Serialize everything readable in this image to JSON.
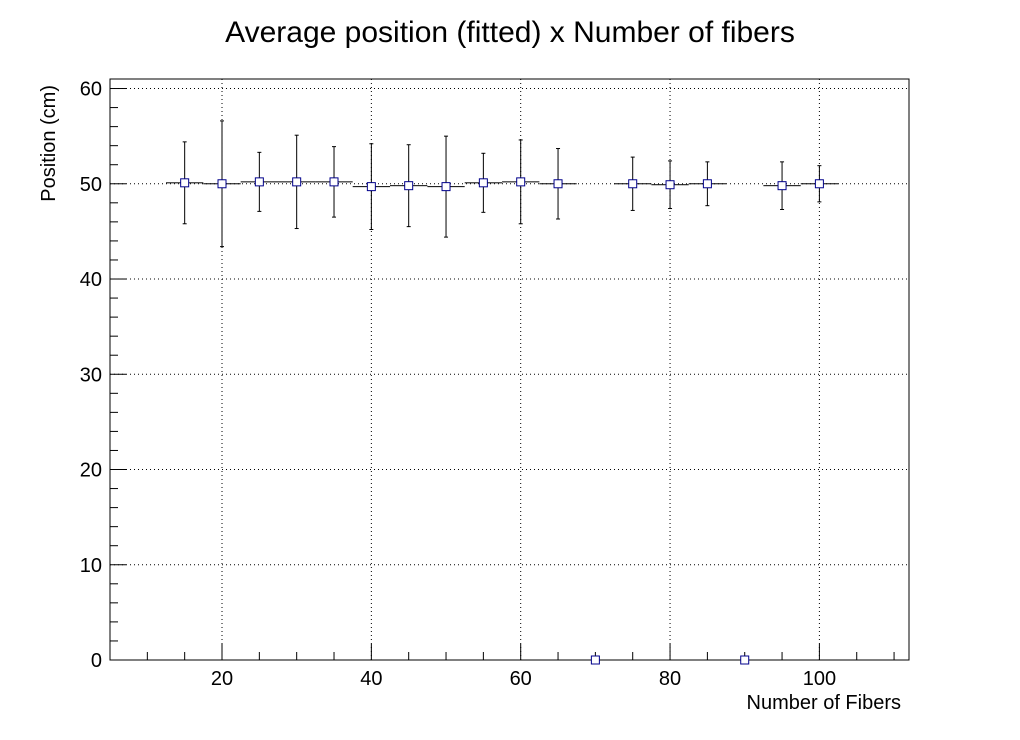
{
  "chart_data": {
    "type": "scatter",
    "title": "Average position (fitted) x Number of fibers",
    "xlabel": "Number of Fibers",
    "ylabel": "Position (cm)",
    "xlim": [
      5,
      112
    ],
    "ylim": [
      0,
      61
    ],
    "grid": true,
    "x_ticks": [
      20,
      40,
      60,
      80,
      100
    ],
    "y_ticks": [
      0,
      10,
      20,
      30,
      40,
      50,
      60
    ],
    "series": [
      {
        "marker": "open-square",
        "marker_color": "#00008b",
        "points": [
          {
            "x": 15,
            "y": 50.1,
            "xerr": 2.5,
            "yerr": 4.3
          },
          {
            "x": 20,
            "y": 50.0,
            "xerr": 2.5,
            "yerr": 6.6
          },
          {
            "x": 25,
            "y": 50.2,
            "xerr": 2.5,
            "yerr": 3.1
          },
          {
            "x": 30,
            "y": 50.2,
            "xerr": 2.5,
            "yerr": 4.9
          },
          {
            "x": 35,
            "y": 50.2,
            "xerr": 2.5,
            "yerr": 3.7
          },
          {
            "x": 40,
            "y": 49.7,
            "xerr": 2.5,
            "yerr": 4.5
          },
          {
            "x": 45,
            "y": 49.8,
            "xerr": 2.5,
            "yerr": 4.3
          },
          {
            "x": 50,
            "y": 49.7,
            "xerr": 2.5,
            "yerr": 5.3
          },
          {
            "x": 55,
            "y": 50.1,
            "xerr": 2.5,
            "yerr": 3.1
          },
          {
            "x": 60,
            "y": 50.2,
            "xerr": 2.5,
            "yerr": 4.4
          },
          {
            "x": 65,
            "y": 50.0,
            "xerr": 2.5,
            "yerr": 3.7
          },
          {
            "x": 70,
            "y": 0.0,
            "xerr": 2.5,
            "yerr": 0
          },
          {
            "x": 75,
            "y": 50.0,
            "xerr": 2.5,
            "yerr": 2.8
          },
          {
            "x": 80,
            "y": 49.9,
            "xerr": 2.5,
            "yerr": 2.5
          },
          {
            "x": 85,
            "y": 50.0,
            "xerr": 2.5,
            "yerr": 2.3
          },
          {
            "x": 90,
            "y": 0.0,
            "xerr": 2.5,
            "yerr": 0
          },
          {
            "x": 95,
            "y": 49.8,
            "xerr": 2.5,
            "yerr": 2.5
          },
          {
            "x": 100,
            "y": 50.0,
            "xerr": 2.5,
            "yerr": 1.9
          }
        ]
      }
    ]
  }
}
